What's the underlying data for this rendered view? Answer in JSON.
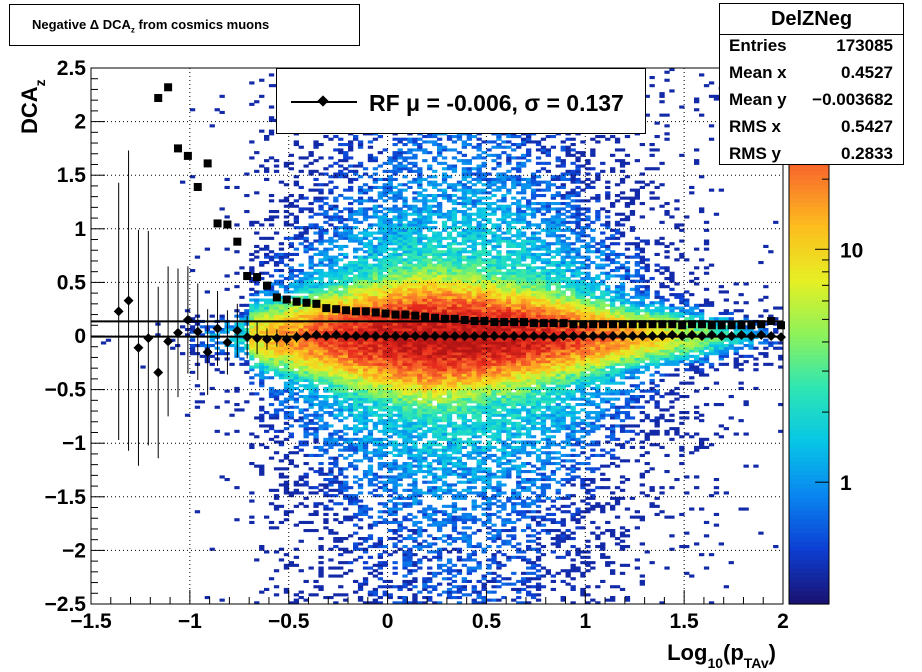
{
  "title": "Negative Δ DCA",
  "title_sub": "z",
  "title_rest": " from cosmics muons",
  "stats": {
    "name": "DelZNeg",
    "rows": [
      {
        "key": "Entries",
        "value": "173085"
      },
      {
        "key": "Mean x",
        "value": "0.4527"
      },
      {
        "key": "Mean y",
        "value": "−0.003682"
      },
      {
        "key": "RMS x",
        "value": "0.5427"
      },
      {
        "key": "RMS y",
        "value": "0.2833"
      }
    ]
  },
  "legend": {
    "entry": "RF μ = -0.006, σ =   0.137"
  },
  "chart_data": {
    "type": "heatmap",
    "xlabel_main": "Log",
    "xlabel_sub": "10",
    "xlabel_paren": "(p",
    "xlabel_sub2": "TAv",
    "xlabel_close": ")",
    "ylabel_main": "DCA",
    "ylabel_sub": "z",
    "xlim": [
      -1.5,
      2
    ],
    "ylim": [
      -2.5,
      2.5
    ],
    "x_ticks": [
      "−1.5",
      "−1",
      "−0.5",
      "0",
      "0.5",
      "1",
      "1.5",
      "2"
    ],
    "x_tick_values": [
      -1.5,
      -1,
      -0.5,
      0,
      0.5,
      1,
      1.5,
      2
    ],
    "y_ticks": [
      "−2.5",
      "−2",
      "−1.5",
      "−1",
      "−0.5",
      "0",
      "0.5",
      "1",
      "1.5",
      "2",
      "2.5"
    ],
    "y_tick_values": [
      -2.5,
      -2,
      -1.5,
      -1,
      -0.5,
      0,
      0.5,
      1,
      1.5,
      2,
      2.5
    ],
    "grid": true,
    "z_scale": "log",
    "z_ticks": [
      "1",
      "10"
    ],
    "z_tick_values": [
      1,
      10
    ],
    "zlim": [
      0.3,
      60
    ],
    "colors": {
      "palette": [
        "#1a1273",
        "#0d3fd4",
        "#0a86f0",
        "#07c6e6",
        "#2ee6b3",
        "#8ef25a",
        "#e6ef24",
        "#fdbe1e",
        "#f9722b",
        "#e82b1d",
        "#b31414"
      ]
    },
    "series": [
      {
        "name": "RF",
        "marker": "diamond",
        "points": [
          {
            "x": -1.36,
            "y": 0.23,
            "err": 1.2
          },
          {
            "x": -1.31,
            "y": 0.33,
            "err": 1.4
          },
          {
            "x": -1.26,
            "y": -0.11,
            "err": 1.1
          },
          {
            "x": -1.21,
            "y": -0.02,
            "err": 1.0
          },
          {
            "x": -1.16,
            "y": -0.34,
            "err": 0.8
          },
          {
            "x": -1.11,
            "y": -0.05,
            "err": 0.7
          },
          {
            "x": -1.06,
            "y": 0.03,
            "err": 0.6
          },
          {
            "x": -1.01,
            "y": 0.15,
            "err": 0.5
          },
          {
            "x": -0.96,
            "y": 0.04,
            "err": 0.45
          },
          {
            "x": -0.91,
            "y": -0.15,
            "err": 0.4
          },
          {
            "x": -0.86,
            "y": 0.07,
            "err": 0.35
          },
          {
            "x": -0.81,
            "y": -0.06,
            "err": 0.3
          },
          {
            "x": -0.76,
            "y": 0.05,
            "err": 0.25
          },
          {
            "x": -0.71,
            "y": -0.01,
            "err": 0.2
          },
          {
            "x": -0.66,
            "y": -0.02,
            "err": 0.15
          },
          {
            "x": -0.61,
            "y": -0.03,
            "err": 0.1
          },
          {
            "x": -0.56,
            "y": -0.02,
            "err": 0.08
          },
          {
            "x": -0.51,
            "y": -0.03,
            "err": 0.06
          },
          {
            "x": -0.46,
            "y": -0.01,
            "err": 0.05
          },
          {
            "x": -0.41,
            "y": 0.0,
            "err": 0.04
          },
          {
            "x": -0.36,
            "y": 0.01,
            "err": 0.03
          },
          {
            "x": -0.31,
            "y": 0.0,
            "err": 0.03
          },
          {
            "x": -0.26,
            "y": 0.01,
            "err": 0.02
          },
          {
            "x": -0.21,
            "y": 0.0,
            "err": 0.02
          },
          {
            "x": -0.16,
            "y": 0.0,
            "err": 0.02
          },
          {
            "x": -0.11,
            "y": 0.0,
            "err": 0.02
          },
          {
            "x": -0.06,
            "y": 0.0,
            "err": 0.02
          },
          {
            "x": -0.01,
            "y": 0.0,
            "err": 0.02
          },
          {
            "x": 0.04,
            "y": 0.0,
            "err": 0.02
          },
          {
            "x": 0.09,
            "y": 0.0,
            "err": 0.02
          },
          {
            "x": 0.14,
            "y": 0.0,
            "err": 0.02
          },
          {
            "x": 0.19,
            "y": 0.0,
            "err": 0.02
          },
          {
            "x": 0.24,
            "y": 0.0,
            "err": 0.02
          },
          {
            "x": 0.29,
            "y": 0.0,
            "err": 0.02
          },
          {
            "x": 0.34,
            "y": 0.0,
            "err": 0.02
          },
          {
            "x": 0.39,
            "y": 0.0,
            "err": 0.02
          },
          {
            "x": 0.44,
            "y": 0.0,
            "err": 0.02
          },
          {
            "x": 0.49,
            "y": 0.0,
            "err": 0.02
          },
          {
            "x": 0.54,
            "y": 0.0,
            "err": 0.02
          },
          {
            "x": 0.59,
            "y": 0.0,
            "err": 0.02
          },
          {
            "x": 0.64,
            "y": 0.0,
            "err": 0.02
          },
          {
            "x": 0.69,
            "y": 0.0,
            "err": 0.02
          },
          {
            "x": 0.74,
            "y": 0.0,
            "err": 0.02
          },
          {
            "x": 0.79,
            "y": 0.0,
            "err": 0.02
          },
          {
            "x": 0.84,
            "y": -0.01,
            "err": 0.02
          },
          {
            "x": 0.89,
            "y": 0.0,
            "err": 0.02
          },
          {
            "x": 0.94,
            "y": 0.0,
            "err": 0.02
          },
          {
            "x": 0.99,
            "y": 0.0,
            "err": 0.02
          },
          {
            "x": 1.04,
            "y": 0.0,
            "err": 0.02
          },
          {
            "x": 1.09,
            "y": 0.0,
            "err": 0.02
          },
          {
            "x": 1.14,
            "y": 0.0,
            "err": 0.02
          },
          {
            "x": 1.19,
            "y": 0.0,
            "err": 0.02
          },
          {
            "x": 1.24,
            "y": 0.0,
            "err": 0.02
          },
          {
            "x": 1.29,
            "y": 0.0,
            "err": 0.02
          },
          {
            "x": 1.34,
            "y": 0.0,
            "err": 0.02
          },
          {
            "x": 1.39,
            "y": 0.0,
            "err": 0.02
          },
          {
            "x": 1.44,
            "y": 0.01,
            "err": 0.02
          },
          {
            "x": 1.49,
            "y": 0.0,
            "err": 0.02
          },
          {
            "x": 1.54,
            "y": 0.01,
            "err": 0.02
          },
          {
            "x": 1.59,
            "y": 0.0,
            "err": 0.02
          },
          {
            "x": 1.64,
            "y": 0.01,
            "err": 0.02
          },
          {
            "x": 1.69,
            "y": 0.0,
            "err": 0.02
          },
          {
            "x": 1.74,
            "y": 0.0,
            "err": 0.02
          },
          {
            "x": 1.79,
            "y": 0.01,
            "err": 0.02
          },
          {
            "x": 1.84,
            "y": 0.0,
            "err": 0.02
          },
          {
            "x": 1.89,
            "y": 0.01,
            "err": 0.02
          },
          {
            "x": 1.94,
            "y": 0.0,
            "err": 0.02
          },
          {
            "x": 1.99,
            "y": -0.01,
            "err": 0.02
          }
        ]
      },
      {
        "marker": "square",
        "points": [
          {
            "x": -1.16,
            "y": 2.22
          },
          {
            "x": -1.11,
            "y": 2.32
          },
          {
            "x": -1.06,
            "y": 1.75
          },
          {
            "x": -1.01,
            "y": 1.68
          },
          {
            "x": -0.96,
            "y": 1.39
          },
          {
            "x": -0.91,
            "y": 1.61
          },
          {
            "x": -0.86,
            "y": 1.05
          },
          {
            "x": -0.81,
            "y": 1.04
          },
          {
            "x": -0.76,
            "y": 0.88
          },
          {
            "x": -0.71,
            "y": 0.56
          },
          {
            "x": -0.66,
            "y": 0.55
          },
          {
            "x": -0.61,
            "y": 0.47
          },
          {
            "x": -0.56,
            "y": 0.36
          },
          {
            "x": -0.51,
            "y": 0.34
          },
          {
            "x": -0.46,
            "y": 0.32
          },
          {
            "x": -0.41,
            "y": 0.31
          },
          {
            "x": -0.36,
            "y": 0.3
          },
          {
            "x": -0.31,
            "y": 0.26
          },
          {
            "x": -0.26,
            "y": 0.25
          },
          {
            "x": -0.21,
            "y": 0.24
          },
          {
            "x": -0.16,
            "y": 0.23
          },
          {
            "x": -0.11,
            "y": 0.23
          },
          {
            "x": -0.06,
            "y": 0.22
          },
          {
            "x": -0.01,
            "y": 0.21
          },
          {
            "x": 0.04,
            "y": 0.2
          },
          {
            "x": 0.09,
            "y": 0.2
          },
          {
            "x": 0.14,
            "y": 0.19
          },
          {
            "x": 0.19,
            "y": 0.18
          },
          {
            "x": 0.24,
            "y": 0.17
          },
          {
            "x": 0.29,
            "y": 0.16
          },
          {
            "x": 0.34,
            "y": 0.16
          },
          {
            "x": 0.39,
            "y": 0.15
          },
          {
            "x": 0.44,
            "y": 0.14
          },
          {
            "x": 0.49,
            "y": 0.14
          },
          {
            "x": 0.54,
            "y": 0.13
          },
          {
            "x": 0.59,
            "y": 0.13
          },
          {
            "x": 0.64,
            "y": 0.13
          },
          {
            "x": 0.69,
            "y": 0.13
          },
          {
            "x": 0.74,
            "y": 0.12
          },
          {
            "x": 0.79,
            "y": 0.12
          },
          {
            "x": 0.84,
            "y": 0.12
          },
          {
            "x": 0.89,
            "y": 0.12
          },
          {
            "x": 0.94,
            "y": 0.11
          },
          {
            "x": 0.99,
            "y": 0.11
          },
          {
            "x": 1.04,
            "y": 0.11
          },
          {
            "x": 1.09,
            "y": 0.11
          },
          {
            "x": 1.14,
            "y": 0.11
          },
          {
            "x": 1.19,
            "y": 0.11
          },
          {
            "x": 1.24,
            "y": 0.11
          },
          {
            "x": 1.29,
            "y": 0.11
          },
          {
            "x": 1.34,
            "y": 0.11
          },
          {
            "x": 1.39,
            "y": 0.11
          },
          {
            "x": 1.44,
            "y": 0.11
          },
          {
            "x": 1.49,
            "y": 0.1
          },
          {
            "x": 1.54,
            "y": 0.11
          },
          {
            "x": 1.59,
            "y": 0.11
          },
          {
            "x": 1.64,
            "y": 0.1
          },
          {
            "x": 1.69,
            "y": 0.1
          },
          {
            "x": 1.74,
            "y": 0.1
          },
          {
            "x": 1.79,
            "y": 0.1
          },
          {
            "x": 1.84,
            "y": 0.1
          },
          {
            "x": 1.89,
            "y": 0.11
          },
          {
            "x": 1.94,
            "y": 0.14
          },
          {
            "x": 1.99,
            "y": 0.1
          }
        ]
      }
    ],
    "reference_lines": [
      {
        "y": -0.006
      },
      {
        "y": 0.137
      }
    ]
  }
}
